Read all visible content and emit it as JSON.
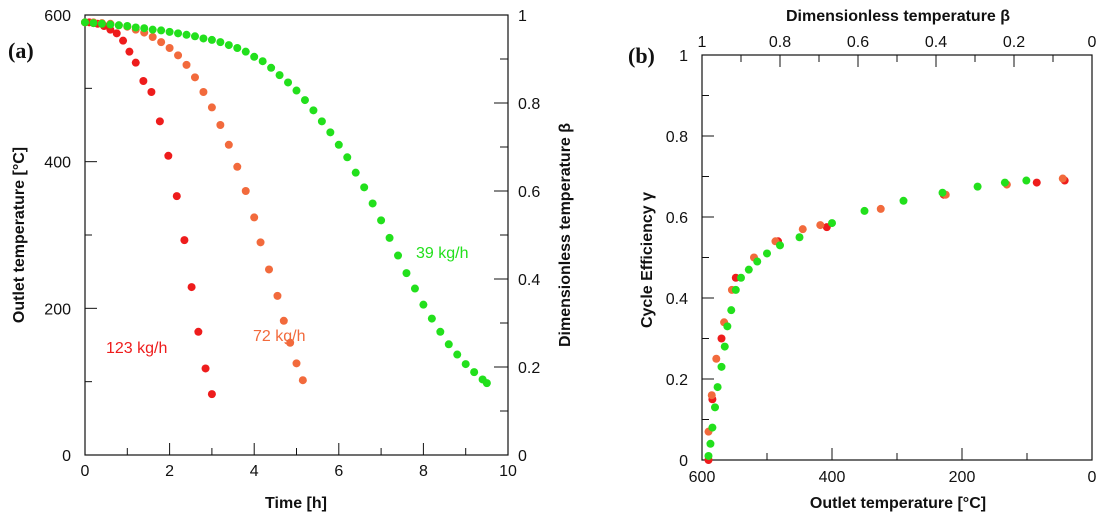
{
  "chart_data": [
    {
      "panel": "(a)",
      "type": "scatter",
      "xlabel": "Time [h]",
      "ylabel": "Outlet temperature [°C]",
      "y2label": "Dimensionless temperature β",
      "xlim": [
        0,
        10
      ],
      "ylim": [
        0,
        600
      ],
      "y2lim": [
        0,
        1
      ],
      "xticks": [
        "0",
        "2",
        "4",
        "6",
        "8",
        "10"
      ],
      "yticks": [
        "0",
        "200",
        "400",
        "600"
      ],
      "y2ticks": [
        "0",
        "0.2",
        "0.4",
        "0.6",
        "0.8",
        "1"
      ],
      "grid": false,
      "series": [
        {
          "name": "123 kg/h",
          "color": "#ee1c1c",
          "x": [
            0.0,
            0.1,
            0.2,
            0.3,
            0.45,
            0.6,
            0.75,
            0.9,
            1.05,
            1.2,
            1.38,
            1.57,
            1.77,
            1.97,
            2.17,
            2.35,
            2.52,
            2.68,
            2.85,
            3.0
          ],
          "y": [
            590,
            590,
            589,
            588,
            585,
            580,
            575,
            565,
            550,
            535,
            510,
            495,
            455,
            408,
            353,
            293,
            229,
            168,
            118,
            83
          ]
        },
        {
          "name": "72 kg/h",
          "color": "#f26a3c",
          "x": [
            0.0,
            0.2,
            0.4,
            0.6,
            0.8,
            1.0,
            1.2,
            1.4,
            1.6,
            1.8,
            2.0,
            2.2,
            2.4,
            2.6,
            2.8,
            3.0,
            3.2,
            3.4,
            3.6,
            3.8,
            4.0,
            4.15,
            4.35,
            4.55,
            4.7,
            4.85,
            5.0,
            5.15
          ],
          "y": [
            590,
            590,
            589,
            588,
            586,
            584,
            580,
            576,
            570,
            563,
            555,
            545,
            532,
            515,
            495,
            474,
            450,
            423,
            393,
            360,
            324,
            290,
            253,
            217,
            183,
            153,
            125,
            102
          ]
        },
        {
          "name": "39 kg/h",
          "color": "#22e01c",
          "x": [
            0.0,
            0.2,
            0.4,
            0.6,
            0.8,
            1.0,
            1.2,
            1.4,
            1.6,
            1.8,
            2.0,
            2.2,
            2.4,
            2.6,
            2.8,
            3.0,
            3.2,
            3.4,
            3.6,
            3.8,
            4.0,
            4.2,
            4.4,
            4.6,
            4.8,
            5.0,
            5.2,
            5.4,
            5.6,
            5.8,
            6.0,
            6.2,
            6.4,
            6.6,
            6.8,
            7.0,
            7.2,
            7.4,
            7.6,
            7.8,
            8.0,
            8.2,
            8.4,
            8.6,
            8.8,
            9.0,
            9.2,
            9.4,
            9.5
          ],
          "y": [
            590,
            589,
            588,
            587,
            586,
            585,
            583,
            582,
            580,
            579,
            577,
            575,
            573,
            571,
            568,
            566,
            563,
            559,
            555,
            550,
            543,
            537,
            528,
            518,
            508,
            497,
            484,
            470,
            455,
            440,
            423,
            406,
            385,
            365,
            343,
            320,
            296,
            272,
            248,
            227,
            205,
            186,
            168,
            151,
            137,
            124,
            113,
            103,
            98
          ]
        }
      ],
      "annotations": [
        "123 kg/h",
        "72 kg/h",
        "39 kg/h"
      ]
    },
    {
      "panel": "(b)",
      "type": "scatter",
      "xlabel": "Outlet temperature [°C]",
      "x2label": "Dimensionless temperature β",
      "ylabel": "Cycle Efficiency γ",
      "xlim": [
        600,
        0
      ],
      "x2lim": [
        1,
        0
      ],
      "ylim": [
        0,
        1
      ],
      "xticks": [
        "600",
        "400",
        "200",
        "0"
      ],
      "x2ticks": [
        "1",
        "0.8",
        "0.6",
        "0.4",
        "0.2",
        "0"
      ],
      "yticks": [
        "0",
        "0.2",
        "0.4",
        "0.6",
        "0.8",
        "1"
      ],
      "grid": false,
      "series": [
        {
          "name": "123 kg/h",
          "color": "#ee1c1c",
          "x": [
            590,
            584,
            570,
            548,
            483,
            408,
            228,
            85,
            42
          ],
          "y": [
            0.0,
            0.15,
            0.3,
            0.45,
            0.54,
            0.575,
            0.655,
            0.685,
            0.69
          ]
        },
        {
          "name": "72 kg/h",
          "color": "#f26a3c",
          "x": [
            590,
            585,
            578,
            566,
            554,
            520,
            487,
            445,
            418,
            325,
            225,
            131,
            45
          ],
          "y": [
            0.07,
            0.16,
            0.25,
            0.34,
            0.42,
            0.5,
            0.54,
            0.57,
            0.58,
            0.62,
            0.655,
            0.68,
            0.695
          ]
        },
        {
          "name": "39 kg/h",
          "color": "#22e01c",
          "x": [
            590,
            587,
            584,
            580,
            576,
            570,
            565,
            561,
            555,
            548,
            540,
            528,
            515,
            500,
            480,
            450,
            400,
            350,
            290,
            230,
            176,
            134,
            101
          ],
          "y": [
            0.01,
            0.04,
            0.08,
            0.13,
            0.18,
            0.23,
            0.28,
            0.33,
            0.37,
            0.42,
            0.45,
            0.47,
            0.49,
            0.51,
            0.53,
            0.55,
            0.585,
            0.615,
            0.64,
            0.66,
            0.675,
            0.685,
            0.69
          ]
        }
      ]
    }
  ],
  "labels": {
    "panel_a": "(a)",
    "panel_b": "(b)",
    "a_xlabel": "Time [h]",
    "a_ylabel": "Outlet temperature [°C]",
    "a_y2label": "Dimensionless temperature β",
    "b_xlabel": "Outlet temperature [°C]",
    "b_x2label": "Dimensionless temperature β",
    "b_ylabel": "Cycle Efficiency γ",
    "series_123": "123 kg/h",
    "series_72": "72 kg/h",
    "series_39": "39 kg/h"
  }
}
